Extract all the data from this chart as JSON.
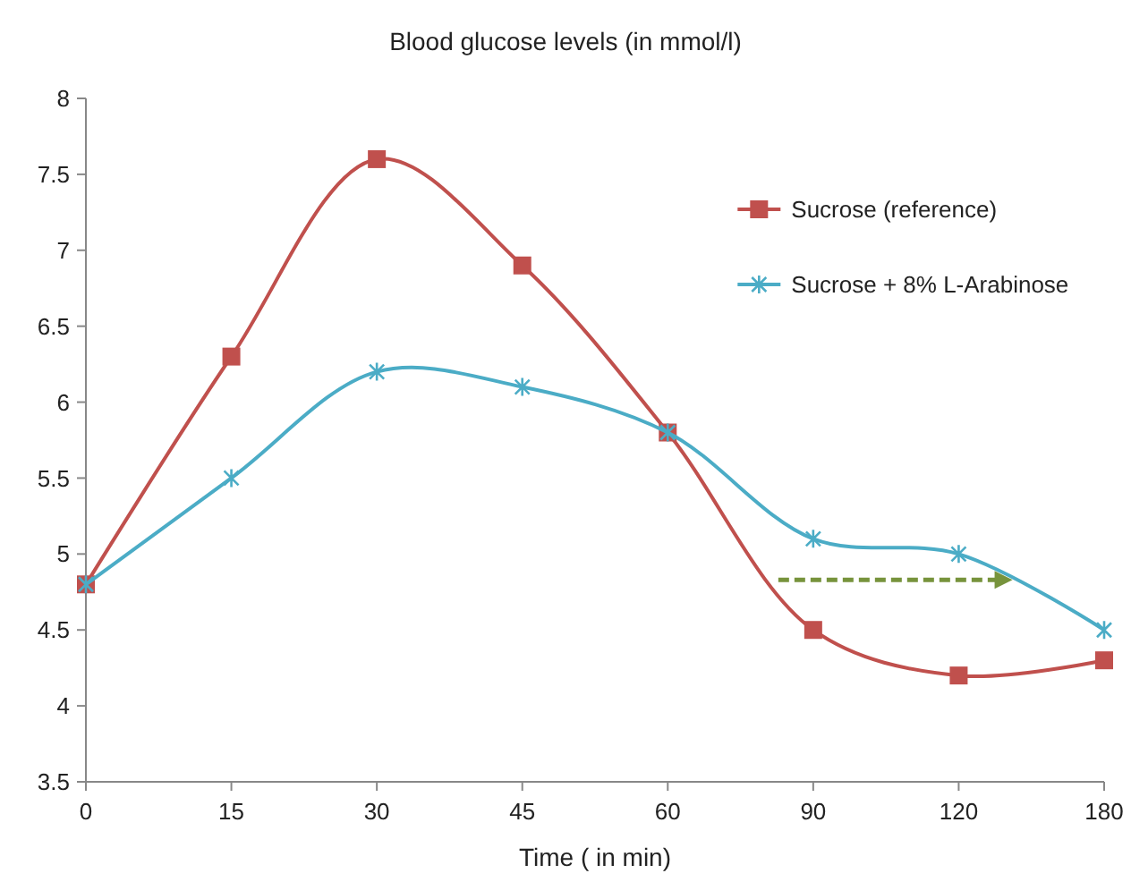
{
  "chart_data": {
    "type": "line",
    "title": "Blood glucose levels (in mmol/l)",
    "xlabel": "Time ( in min)",
    "categories": [
      "0",
      "15",
      "30",
      "45",
      "60",
      "90",
      "120",
      "180"
    ],
    "series": [
      {
        "name": "Sucrose (reference)",
        "color": "#c0504d",
        "marker": "square",
        "values": [
          4.8,
          6.3,
          7.6,
          6.9,
          5.8,
          4.5,
          4.2,
          4.3
        ]
      },
      {
        "name": "Sucrose + 8% L-Arabinose",
        "color": "#4bacc6",
        "marker": "cross",
        "values": [
          4.8,
          5.5,
          6.2,
          6.1,
          5.8,
          5.1,
          5.0,
          4.5
        ]
      }
    ],
    "ylim": [
      3.5,
      8
    ],
    "yticks": [
      3.5,
      4,
      4.5,
      5,
      5.5,
      6,
      6.5,
      7,
      7.5,
      8
    ],
    "legend": "top right",
    "line_style": "solid"
  }
}
